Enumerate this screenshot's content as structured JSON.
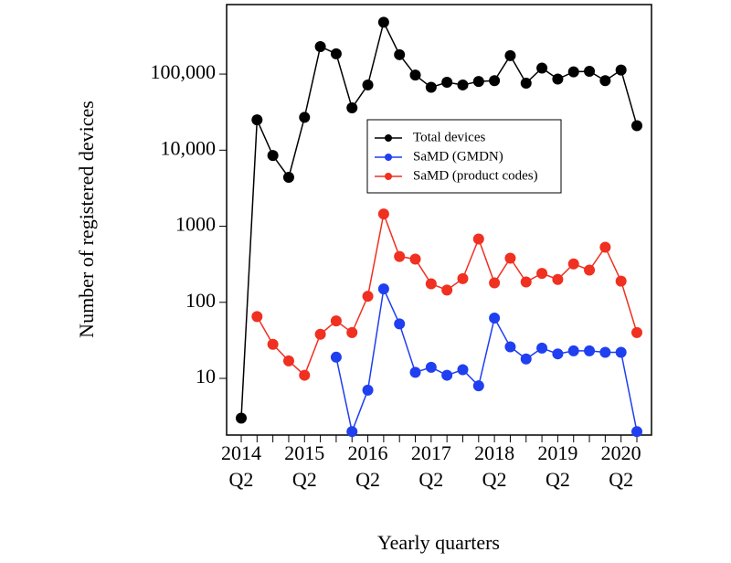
{
  "chart_data": {
    "type": "line",
    "x_label": "Yearly quarters",
    "y_label": "Number of registered devices",
    "log_y": true,
    "categories": [
      "2014",
      null,
      null,
      null,
      "2015",
      null,
      null,
      null,
      "2016",
      null,
      null,
      null,
      "2017",
      null,
      null,
      null,
      "2018",
      null,
      null,
      null,
      "2019",
      null,
      null,
      null,
      "2020",
      null
    ],
    "category_quarters": [
      "Q2",
      null,
      null,
      null,
      "Q2",
      null,
      null,
      null,
      "Q2",
      null,
      null,
      null,
      "Q2",
      null,
      null,
      null,
      "Q2",
      null,
      null,
      null,
      "Q2",
      null,
      null,
      null,
      "Q2",
      null
    ],
    "ylim": [
      1.8,
      820000
    ],
    "yticks": [
      10,
      100,
      1000,
      {
        "value": 10000,
        "label": "10,000"
      },
      {
        "value": 100000,
        "label": "100,000"
      }
    ],
    "legend": "upper-center",
    "series": [
      {
        "name": "Total devices",
        "color": "#000000",
        "values": [
          3,
          25000,
          8500,
          4400,
          27000,
          230000,
          185000,
          36000,
          72000,
          480000,
          180000,
          97000,
          67000,
          78000,
          72000,
          80000,
          82000,
          175000,
          76000,
          120000,
          86000,
          107000,
          109000,
          82000,
          113000,
          21000
        ]
      },
      {
        "name": "SaMD (GMDN)",
        "color": "#1f3ff0",
        "values": [
          null,
          null,
          null,
          null,
          null,
          null,
          19,
          2,
          7,
          150,
          52,
          12,
          14,
          11,
          13,
          8,
          62,
          26,
          18,
          25,
          21,
          23,
          23,
          22,
          22,
          2
        ]
      },
      {
        "name": "SaMD (product codes)",
        "color": "#f03020",
        "values": [
          null,
          65,
          28,
          17,
          11,
          38,
          57,
          40,
          120,
          1450,
          400,
          370,
          175,
          145,
          205,
          680,
          180,
          380,
          185,
          240,
          200,
          320,
          265,
          530,
          190,
          40
        ]
      }
    ]
  }
}
